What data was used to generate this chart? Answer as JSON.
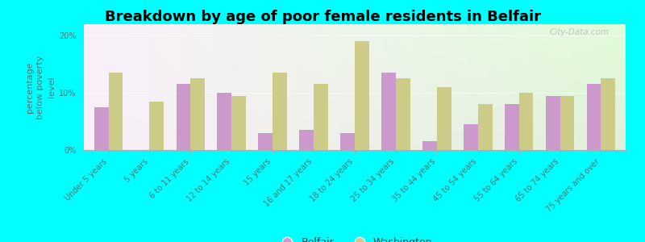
{
  "title": "Breakdown by age of poor female residents in Belfair",
  "ylabel": "percentage\nbelow poverty\nlevel",
  "background_color": "#00FFFF",
  "plot_bg_color": "#e8f0e0",
  "categories": [
    "Under 5 years",
    "5 years",
    "6 to 11 years",
    "12 to 14 years",
    "15 years",
    "16 and 17 years",
    "18 to 24 years",
    "25 to 34 years",
    "35 to 44 years",
    "45 to 54 years",
    "55 to 64 years",
    "65 to 74 years",
    "75 years and over"
  ],
  "belfair_values": [
    7.5,
    0,
    11.5,
    10.0,
    3.0,
    3.5,
    3.0,
    13.5,
    1.5,
    4.5,
    8.0,
    9.5,
    11.5
  ],
  "washington_values": [
    13.5,
    8.5,
    12.5,
    9.5,
    13.5,
    11.5,
    19.0,
    12.5,
    11.0,
    8.0,
    10.0,
    9.5,
    12.5
  ],
  "belfair_color": "#cc99cc",
  "washington_color": "#cccc88",
  "bar_width": 0.35,
  "ylim": [
    0,
    22
  ],
  "yticks": [
    0,
    10,
    20
  ],
  "ytick_labels": [
    "0%",
    "10%",
    "20%"
  ],
  "title_fontsize": 13,
  "axis_label_fontsize": 8,
  "tick_fontsize": 7,
  "tick_color": "#447777",
  "legend_belfair": "Belfair",
  "legend_washington": "Washington",
  "watermark": "City-Data.com"
}
